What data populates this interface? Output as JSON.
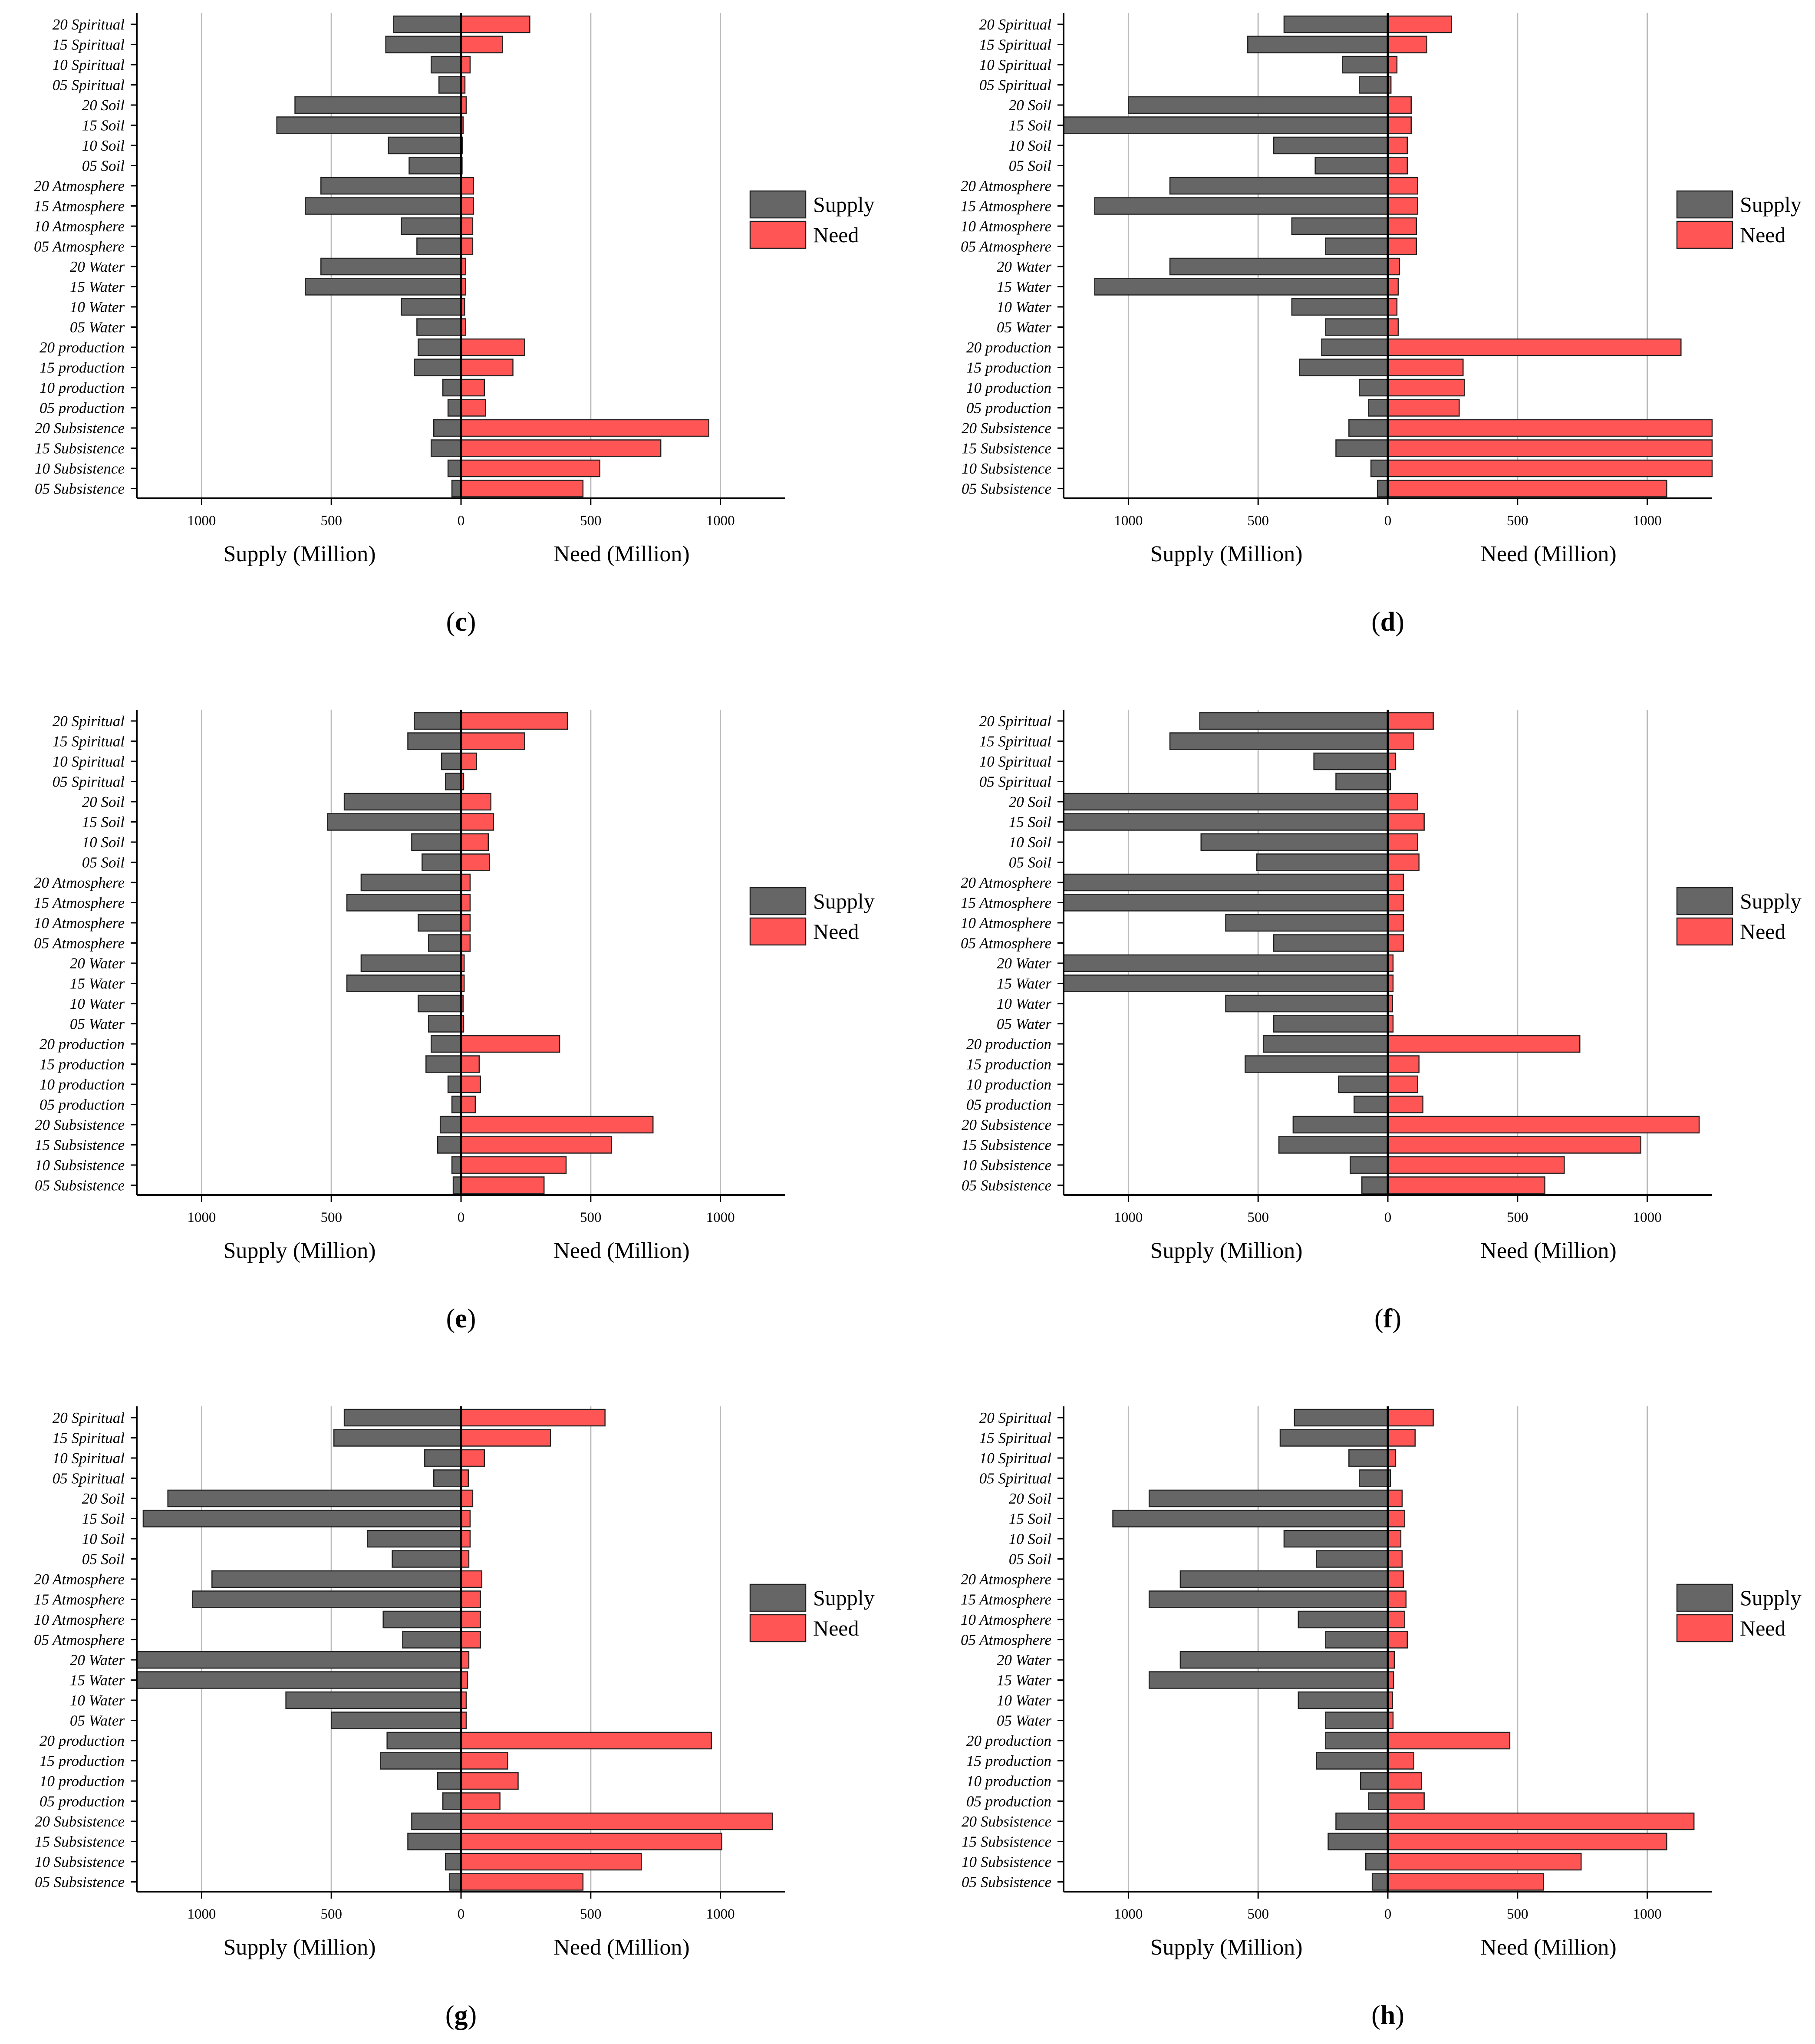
{
  "figure": {
    "colors": {
      "supply": "#666666",
      "need": "#ff5555",
      "axis": "#000000",
      "grid": "#bbbbbb",
      "bar_stroke": "#222222"
    },
    "icons": {
      "supply_swatch": "legend-swatch-supply",
      "need_swatch": "legend-swatch-need"
    }
  },
  "chart_data": [
    {
      "type": "bar",
      "orientation": "horizontal-diverging",
      "panel_label": "(c)",
      "categories": [
        "20 Spiritual",
        "15 Spiritual",
        "10 Spiritual",
        "05 Spiritual",
        "20 Soil",
        "15 Soil",
        "10 Soil",
        "05 Soil",
        "20 Atmosphere",
        "15 Atmosphere",
        "10 Atmosphere",
        "05 Atmosphere",
        "20 Water",
        "15 Water",
        "10 Water",
        "05 Water",
        "20 production",
        "15 production",
        "10 production",
        "05 production",
        "20 Subsistence",
        "15 Subsistence",
        "10 Subsistence",
        "05 Subsistence"
      ],
      "series": [
        {
          "name": "Supply",
          "values": [
            260,
            290,
            115,
            85,
            640,
            710,
            280,
            200,
            540,
            600,
            230,
            170,
            540,
            600,
            230,
            170,
            165,
            180,
            70,
            50,
            105,
            115,
            50,
            35
          ]
        },
        {
          "name": "Need",
          "values": [
            265,
            160,
            35,
            15,
            20,
            8,
            6,
            4,
            48,
            48,
            45,
            45,
            18,
            18,
            14,
            18,
            245,
            200,
            90,
            95,
            955,
            770,
            535,
            470
          ]
        }
      ],
      "xlabel_left": "Supply (Million)",
      "xlabel_right": "Need (Million)",
      "xlim": [
        -1250,
        1250
      ],
      "xticks": [
        {
          "value": -1000,
          "label": "1000"
        },
        {
          "value": -500,
          "label": "500"
        },
        {
          "value": 0,
          "label": "0"
        },
        {
          "value": 500,
          "label": "500"
        },
        {
          "value": 1000,
          "label": "1000"
        }
      ],
      "legend": [
        "Supply",
        "Need"
      ],
      "legend_position": "right",
      "grid": true
    },
    {
      "type": "bar",
      "orientation": "horizontal-diverging",
      "panel_label": "(d)",
      "categories": [
        "20 Spiritual",
        "15 Spiritual",
        "10 Spiritual",
        "05 Spiritual",
        "20 Soil",
        "15 Soil",
        "10 Soil",
        "05 Soil",
        "20 Atmosphere",
        "15 Atmosphere",
        "10 Atmosphere",
        "05 Atmosphere",
        "20 Water",
        "15 Water",
        "10 Water",
        "05 Water",
        "20 production",
        "15 production",
        "10 production",
        "05 production",
        "20 Subsistence",
        "15 Subsistence",
        "10 Subsistence",
        "05 Subsistence"
      ],
      "series": [
        {
          "name": "Supply",
          "values": [
            400,
            540,
            175,
            110,
            1000,
            1250,
            440,
            280,
            840,
            1130,
            370,
            240,
            840,
            1130,
            370,
            240,
            255,
            340,
            110,
            75,
            150,
            200,
            65,
            40
          ]
        },
        {
          "name": "Need",
          "values": [
            245,
            150,
            35,
            12,
            90,
            90,
            75,
            75,
            115,
            115,
            110,
            110,
            45,
            40,
            35,
            40,
            1130,
            290,
            295,
            275,
            1250,
            1250,
            1250,
            1075
          ]
        }
      ],
      "xlabel_left": "Supply (Million)",
      "xlabel_right": "Need (Million)",
      "xlim": [
        -1250,
        1250
      ],
      "xticks": [
        {
          "value": -1000,
          "label": "1000"
        },
        {
          "value": -500,
          "label": "500"
        },
        {
          "value": 0,
          "label": "0"
        },
        {
          "value": 500,
          "label": "500"
        },
        {
          "value": 1000,
          "label": "1000"
        }
      ],
      "legend": [
        "Supply",
        "Need"
      ],
      "legend_position": "right",
      "grid": true
    },
    {
      "type": "bar",
      "orientation": "horizontal-diverging",
      "panel_label": "(e)",
      "categories": [
        "20 Spiritual",
        "15 Spiritual",
        "10 Spiritual",
        "05 Spiritual",
        "20 Soil",
        "15 Soil",
        "10 Soil",
        "05 Soil",
        "20 Atmosphere",
        "15 Atmosphere",
        "10 Atmosphere",
        "05 Atmosphere",
        "20 Water",
        "15 Water",
        "10 Water",
        "05 Water",
        "20 production",
        "15 production",
        "10 production",
        "05 production",
        "20 Subsistence",
        "15 Subsistence",
        "10 Subsistence",
        "05 Subsistence"
      ],
      "series": [
        {
          "name": "Supply",
          "values": [
            180,
            205,
            75,
            60,
            450,
            515,
            190,
            150,
            385,
            440,
            165,
            125,
            385,
            440,
            165,
            125,
            115,
            135,
            50,
            35,
            80,
            90,
            35,
            30
          ]
        },
        {
          "name": "Need",
          "values": [
            410,
            245,
            60,
            10,
            115,
            125,
            105,
            110,
            35,
            35,
            35,
            35,
            12,
            12,
            8,
            10,
            380,
            70,
            75,
            55,
            740,
            580,
            405,
            320
          ]
        }
      ],
      "xlabel_left": "Supply (Million)",
      "xlabel_right": "Need (Million)",
      "xlim": [
        -1250,
        1250
      ],
      "xticks": [
        {
          "value": -1000,
          "label": "1000"
        },
        {
          "value": -500,
          "label": "500"
        },
        {
          "value": 0,
          "label": "0"
        },
        {
          "value": 500,
          "label": "500"
        },
        {
          "value": 1000,
          "label": "1000"
        }
      ],
      "legend": [
        "Supply",
        "Need"
      ],
      "legend_position": "right",
      "grid": true
    },
    {
      "type": "bar",
      "orientation": "horizontal-diverging",
      "panel_label": "(f)",
      "categories": [
        "20 Spiritual",
        "15 Spiritual",
        "10 Spiritual",
        "05 Spiritual",
        "20 Soil",
        "15 Soil",
        "10 Soil",
        "05 Soil",
        "20 Atmosphere",
        "15 Atmosphere",
        "10 Atmosphere",
        "05 Atmosphere",
        "20 Water",
        "15 Water",
        "10 Water",
        "05 Water",
        "20 production",
        "15 production",
        "10 production",
        "05 production",
        "20 Subsistence",
        "15 Subsistence",
        "10 Subsistence",
        "05 Subsistence"
      ],
      "series": [
        {
          "name": "Supply",
          "values": [
            725,
            840,
            285,
            200,
            1250,
            1250,
            720,
            505,
            1250,
            1250,
            625,
            440,
            1250,
            1250,
            625,
            440,
            480,
            550,
            190,
            130,
            365,
            420,
            145,
            100
          ]
        },
        {
          "name": "Need",
          "values": [
            175,
            100,
            30,
            10,
            115,
            140,
            115,
            120,
            60,
            60,
            60,
            60,
            20,
            20,
            18,
            20,
            740,
            120,
            115,
            135,
            1200,
            975,
            680,
            605
          ]
        }
      ],
      "xlabel_left": "Supply (Million)",
      "xlabel_right": "Need (Million)",
      "xlim": [
        -1250,
        1250
      ],
      "xticks": [
        {
          "value": -1000,
          "label": "1000"
        },
        {
          "value": -500,
          "label": "500"
        },
        {
          "value": 0,
          "label": "0"
        },
        {
          "value": 500,
          "label": "500"
        },
        {
          "value": 1000,
          "label": "1000"
        }
      ],
      "legend": [
        "Supply",
        "Need"
      ],
      "legend_position": "right",
      "grid": true
    },
    {
      "type": "bar",
      "orientation": "horizontal-diverging",
      "panel_label": "(g)",
      "categories": [
        "20 Spiritual",
        "15 Spiritual",
        "10 Spiritual",
        "05 Spiritual",
        "20 Soil",
        "15 Soil",
        "10 Soil",
        "05 Soil",
        "20 Atmosphere",
        "15 Atmosphere",
        "10 Atmosphere",
        "05 Atmosphere",
        "20 Water",
        "15 Water",
        "10 Water",
        "05 Water",
        "20 production",
        "15 production",
        "10 production",
        "05 production",
        "20 Subsistence",
        "15 Subsistence",
        "10 Subsistence",
        "05 Subsistence"
      ],
      "series": [
        {
          "name": "Supply",
          "values": [
            450,
            490,
            140,
            105,
            1130,
            1225,
            360,
            265,
            960,
            1035,
            300,
            225,
            1250,
            1250,
            675,
            500,
            285,
            310,
            90,
            70,
            190,
            205,
            60,
            45
          ]
        },
        {
          "name": "Need",
          "values": [
            555,
            345,
            90,
            28,
            45,
            35,
            35,
            30,
            80,
            75,
            75,
            75,
            30,
            25,
            20,
            20,
            965,
            180,
            220,
            150,
            1200,
            1005,
            695,
            470
          ]
        }
      ],
      "xlabel_left": "Supply (Million)",
      "xlabel_right": "Need (Million)",
      "xlim": [
        -1250,
        1250
      ],
      "xticks": [
        {
          "value": -1000,
          "label": "1000"
        },
        {
          "value": -500,
          "label": "500"
        },
        {
          "value": 0,
          "label": "0"
        },
        {
          "value": 500,
          "label": "500"
        },
        {
          "value": 1000,
          "label": "1000"
        }
      ],
      "legend": [
        "Supply",
        "Need"
      ],
      "legend_position": "right",
      "grid": true
    },
    {
      "type": "bar",
      "orientation": "horizontal-diverging",
      "panel_label": "(h)",
      "categories": [
        "20 Spiritual",
        "15 Spiritual",
        "10 Spiritual",
        "05 Spiritual",
        "20 Soil",
        "15 Soil",
        "10 Soil",
        "05 Soil",
        "20 Atmosphere",
        "15 Atmosphere",
        "10 Atmosphere",
        "05 Atmosphere",
        "20 Water",
        "15 Water",
        "10 Water",
        "05 Water",
        "20 production",
        "15 production",
        "10 production",
        "05 production",
        "20 Subsistence",
        "15 Subsistence",
        "10 Subsistence",
        "05 Subsistence"
      ],
      "series": [
        {
          "name": "Supply",
          "values": [
            360,
            415,
            150,
            110,
            920,
            1060,
            400,
            275,
            800,
            920,
            345,
            240,
            800,
            920,
            345,
            240,
            240,
            275,
            105,
            75,
            200,
            230,
            85,
            60
          ]
        },
        {
          "name": "Need",
          "values": [
            175,
            105,
            30,
            10,
            55,
            65,
            50,
            55,
            60,
            70,
            65,
            75,
            25,
            22,
            18,
            20,
            470,
            100,
            130,
            140,
            1180,
            1075,
            745,
            600
          ]
        }
      ],
      "xlabel_left": "Supply (Million)",
      "xlabel_right": "Need (Million)",
      "xlim": [
        -1250,
        1250
      ],
      "xticks": [
        {
          "value": -1000,
          "label": "1000"
        },
        {
          "value": -500,
          "label": "500"
        },
        {
          "value": 0,
          "label": "0"
        },
        {
          "value": 500,
          "label": "500"
        },
        {
          "value": 1000,
          "label": "1000"
        }
      ],
      "legend": [
        "Supply",
        "Need"
      ],
      "legend_position": "right",
      "grid": true
    }
  ]
}
